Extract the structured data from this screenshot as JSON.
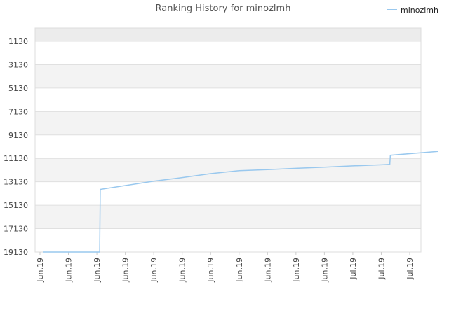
{
  "chart_data": {
    "type": "line",
    "title": "Ranking History for minozlmh",
    "xlabel": "",
    "ylabel": "",
    "y_reversed": true,
    "ylim": [
      1130,
      19130
    ],
    "y_ticks": [
      "1130",
      "3130",
      "5130",
      "7130",
      "9130",
      "11130",
      "13130",
      "15130",
      "17130",
      "19130"
    ],
    "x_ticks": [
      "Jun.19",
      "Jun.19",
      "Jun.19",
      "Jun.19",
      "Jun.19",
      "Jun.19",
      "Jun.19",
      "Jun.19",
      "Jun.19",
      "Jun.19",
      "Jun.19",
      "Jul.19",
      "Jul.19",
      "Jul.19"
    ],
    "grid": true,
    "legend_position": "top-right",
    "series": [
      {
        "name": "minozlmh",
        "color": "#99c8ee",
        "points": [
          [
            0.1,
            19130
          ],
          [
            2.1,
            19130
          ],
          [
            2.12,
            13780
          ],
          [
            4.0,
            13080
          ],
          [
            5.0,
            12770
          ],
          [
            6.0,
            12430
          ],
          [
            7.0,
            12180
          ],
          [
            8.0,
            12090
          ],
          [
            9.0,
            11980
          ],
          [
            10.0,
            11880
          ],
          [
            11.0,
            11770
          ],
          [
            12.0,
            11680
          ],
          [
            12.3,
            11640
          ],
          [
            12.32,
            10860
          ],
          [
            14.0,
            10530
          ]
        ]
      }
    ],
    "colors": {
      "line": "#99c8ee",
      "band": "#f3f3f3",
      "top_band": "#ececec",
      "grid": "#e0e0e0",
      "axis": "#cccccc"
    }
  }
}
